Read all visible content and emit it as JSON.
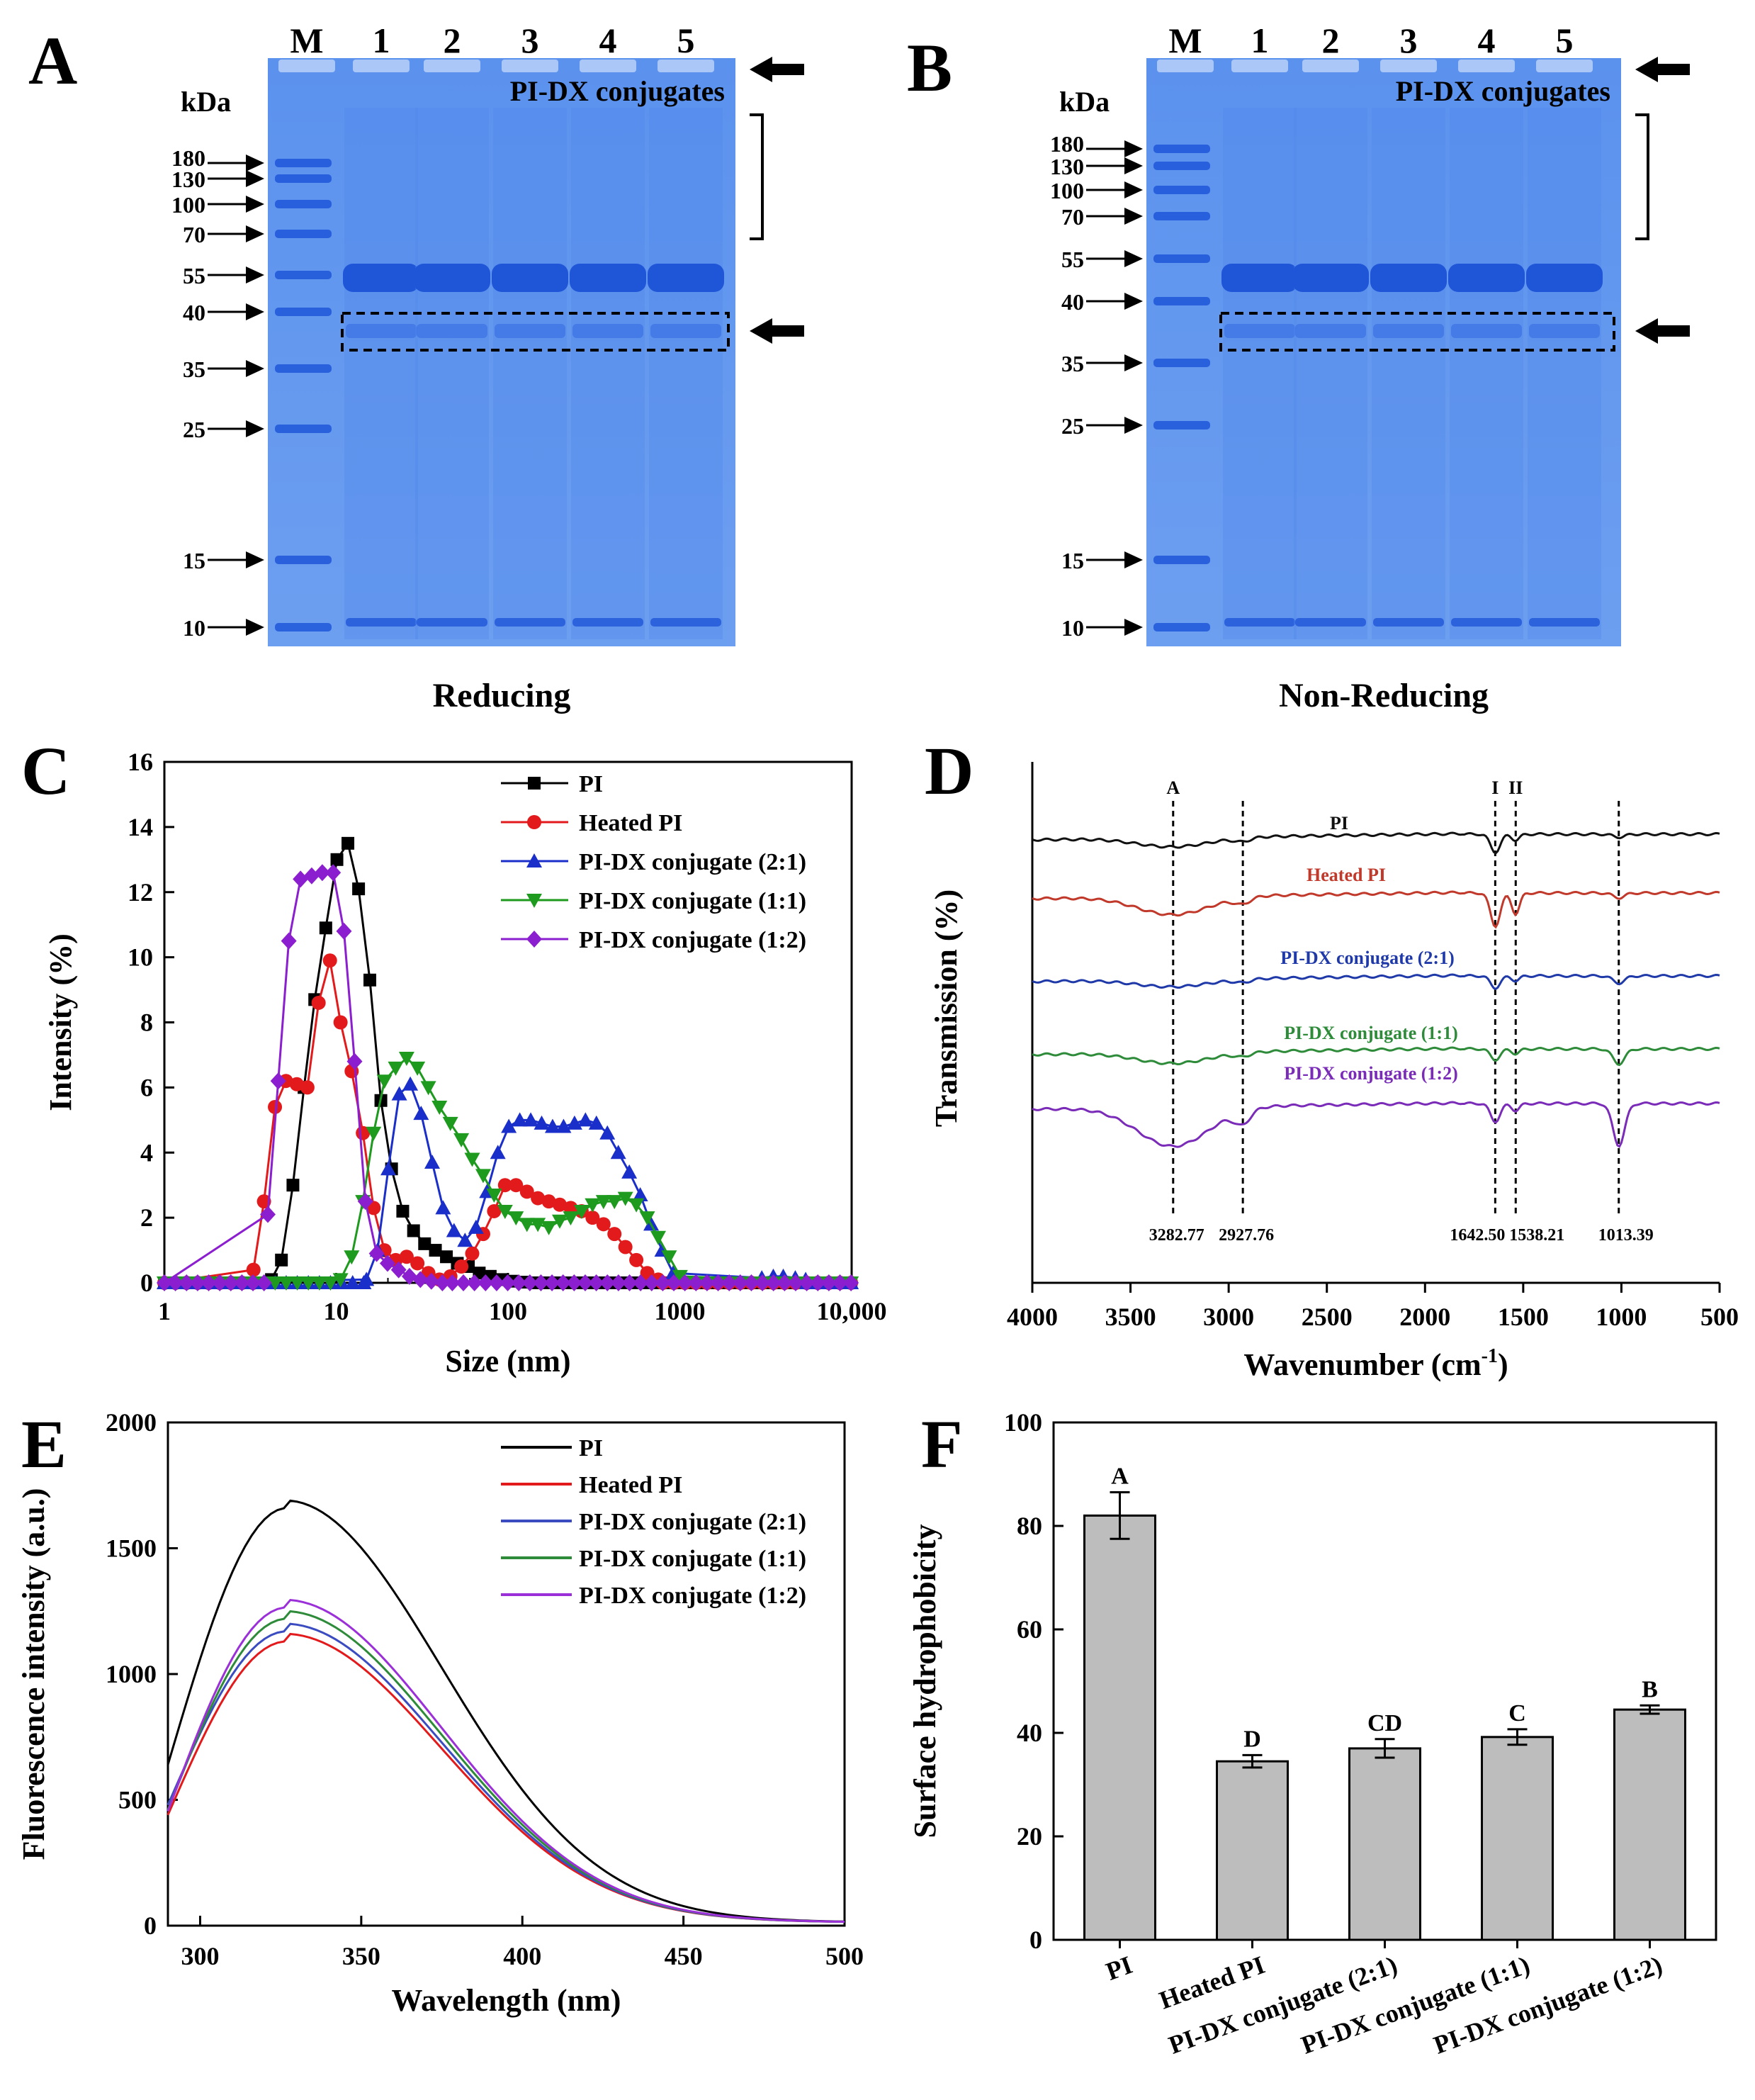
{
  "figure": {
    "panel_labels": [
      "A",
      "B",
      "C",
      "D",
      "E",
      "F"
    ]
  },
  "gels": [
    {
      "id": "A",
      "lanes": [
        "M",
        "1",
        "2",
        "3",
        "4",
        "5"
      ],
      "kda_label": "kDa",
      "markers": [
        "180",
        "130",
        "100",
        "70",
        "55",
        "40",
        "35",
        "25",
        "15",
        "10"
      ],
      "conjugate_label": "PI-DX conjugates",
      "caption": "Reducing",
      "colors": {
        "gel": "#6d9ff0",
        "band": "#1f56d8"
      }
    },
    {
      "id": "B",
      "lanes": [
        "M",
        "1",
        "2",
        "3",
        "4",
        "5"
      ],
      "kda_label": "kDa",
      "markers": [
        "180",
        "130",
        "100",
        "70",
        "55",
        "40",
        "35",
        "25",
        "15",
        "10"
      ],
      "conjugate_label": "PI-DX conjugates",
      "caption": "Non-Reducing",
      "colors": {
        "gel": "#6d9ff0",
        "band": "#1f56d8"
      }
    }
  ],
  "chart_data": [
    {
      "panel": "C",
      "type": "line",
      "xscale": "log",
      "xlabel": "Size (nm)",
      "ylabel": "Intensity (%)",
      "xlim": [
        1,
        10000
      ],
      "ylim": [
        0,
        16
      ],
      "xticks": [
        "1",
        "10",
        "100",
        "1000",
        "10,000"
      ],
      "yticks": [
        "0",
        "2",
        "4",
        "6",
        "8",
        "10",
        "12",
        "14",
        "16"
      ],
      "legend_position": "top-right",
      "series": [
        {
          "name": "PI",
          "color": "#000000",
          "marker": "square",
          "x": [
            4.2,
            4.8,
            5.6,
            6.5,
            7.5,
            8.7,
            10.1,
            11.7,
            13.5,
            15.7,
            18.2,
            21,
            24.4,
            28.2,
            32.7,
            37.8,
            43.8,
            50.7,
            58.8,
            68,
            78.8,
            91.3,
            105.7,
            122.4,
            141.8,
            164.2
          ],
          "y": [
            0.1,
            0.7,
            3.0,
            6.0,
            8.7,
            10.9,
            13.0,
            13.5,
            12.1,
            9.3,
            5.6,
            3.5,
            2.2,
            1.6,
            1.2,
            1.0,
            0.8,
            0.6,
            0.5,
            0.3,
            0.2,
            0.1,
            0.05,
            0.02,
            0,
            0
          ]
        },
        {
          "name": "Heated PI",
          "color": "#e31a1c",
          "marker": "circle",
          "x": [
            3.3,
            3.8,
            4.4,
            5.1,
            5.9,
            6.8,
            7.9,
            9.2,
            10.6,
            12.3,
            14.3,
            16.5,
            19.1,
            22.2,
            25.7,
            29.7,
            34.4,
            39.9,
            46.2,
            53.5,
            61.9,
            71.7,
            83,
            96.1,
            111.3,
            128.9,
            149.2,
            172.8,
            200,
            231.6,
            268.2,
            310.5,
            359.6,
            416.4,
            482.1,
            558.3,
            646.4,
            748.5
          ],
          "y": [
            0.4,
            2.5,
            5.4,
            6.2,
            6.1,
            6.0,
            8.6,
            9.9,
            8.0,
            6.5,
            4.6,
            2.3,
            1.0,
            0.7,
            0.8,
            0.6,
            0.3,
            0.1,
            0.2,
            0.5,
            0.9,
            1.5,
            2.2,
            3.0,
            3.0,
            2.8,
            2.6,
            2.5,
            2.4,
            2.3,
            2.2,
            2.0,
            1.8,
            1.5,
            1.1,
            0.7,
            0.3,
            0.1
          ]
        },
        {
          "name": "PI-DX conjugate (2:1)",
          "color": "#1a2ec9",
          "marker": "triangle-up",
          "x": [
            15,
            17.4,
            20.1,
            23.3,
            27,
            31.2,
            36.2,
            41.9,
            48.5,
            56.2,
            65.1,
            75.4,
            87.3,
            101.1,
            117.1,
            135.6,
            157,
            181.8,
            210.6,
            243.9,
            282.4,
            327,
            378.7,
            438.6,
            507.9,
            588.2,
            681.2,
            788.9,
            913.5,
            3000,
            3500,
            4000,
            4700,
            5400
          ],
          "y": [
            0.1,
            1.0,
            3.5,
            5.8,
            6.1,
            5.2,
            3.7,
            2.3,
            1.6,
            1.3,
            1.7,
            2.8,
            4.0,
            4.8,
            5.0,
            5.0,
            4.9,
            4.8,
            4.8,
            4.9,
            5.0,
            4.9,
            4.6,
            4.0,
            3.4,
            2.7,
            1.8,
            1.0,
            0.3,
            0.15,
            0.2,
            0.2,
            0.15,
            0.1
          ]
        },
        {
          "name": "PI-DX conjugate (1:1)",
          "color": "#1e9a1e",
          "marker": "triangle-down",
          "x": [
            10.6,
            12.3,
            14.3,
            16.5,
            19.1,
            22.2,
            25.7,
            29.7,
            34.4,
            39.9,
            46.2,
            53.5,
            61.9,
            71.7,
            83,
            96.1,
            111.3,
            128.9,
            149.2,
            172.8,
            200,
            231.6,
            268.2,
            310.5,
            359.6,
            416.4,
            482.1,
            558.3,
            646.4,
            748.5,
            866.7,
            1003.6
          ],
          "y": [
            0.1,
            0.8,
            2.5,
            4.6,
            6.2,
            6.6,
            6.9,
            6.6,
            6.0,
            5.4,
            4.9,
            4.4,
            3.8,
            3.3,
            2.7,
            2.2,
            2.0,
            1.8,
            1.8,
            1.7,
            1.9,
            2.0,
            2.2,
            2.4,
            2.5,
            2.5,
            2.6,
            2.4,
            2.0,
            1.4,
            0.8,
            0.2
          ]
        },
        {
          "name": "PI-DX conjugate (1:2)",
          "color": "#8b1ecf",
          "marker": "diamond",
          "x": [
            4.0,
            4.6,
            5.3,
            6.2,
            7.2,
            8.3,
            9.6,
            11.1,
            12.8,
            14.8,
            17.2,
            19.9,
            23.1,
            26.7,
            30.9,
            35.8,
            41.5
          ],
          "y": [
            2.1,
            6.2,
            10.5,
            12.4,
            12.5,
            12.6,
            12.6,
            10.8,
            6.8,
            2.5,
            0.9,
            0.6,
            0.4,
            0.2,
            0.1,
            0.05,
            0
          ]
        }
      ]
    },
    {
      "panel": "D",
      "type": "line",
      "xlabel": "Wavenumber (cm",
      "xlabel_sup": "-1",
      "xlabel_end": ")",
      "ylabel": "Transmission (%)",
      "xlim": [
        4000,
        500
      ],
      "xticks": [
        "4000",
        "3500",
        "3000",
        "2500",
        "2000",
        "1500",
        "1000",
        "500"
      ],
      "peak_marks": [
        {
          "label": "A",
          "value": "3282.77",
          "x": 3282.77
        },
        {
          "label": "",
          "value": "2927.76",
          "x": 2927.76
        },
        {
          "label": "I",
          "value": "1642.50",
          "x": 1642.5
        },
        {
          "label": "II",
          "value": "1538.21",
          "x": 1538.21
        },
        {
          "label": "",
          "value": "1013.39",
          "x": 1013.39
        }
      ],
      "series": [
        {
          "name": "PI",
          "color": "#111111",
          "offset": 0,
          "depth": [
            0.15,
            0.06,
            0.3,
            0.1,
            0.05
          ]
        },
        {
          "name": "Heated PI",
          "color": "#c0392b",
          "offset": 1,
          "depth": [
            0.3,
            0.1,
            0.55,
            0.35,
            0.08
          ]
        },
        {
          "name": "PI-DX conjugate (2:1)",
          "color": "#1f3aa8",
          "offset": 2,
          "depth": [
            0.12,
            0.05,
            0.2,
            0.08,
            0.12
          ]
        },
        {
          "name": "PI-DX conjugate (1:1)",
          "color": "#2e8b3a",
          "offset": 3,
          "depth": [
            0.18,
            0.06,
            0.18,
            0.08,
            0.25
          ]
        },
        {
          "name": "PI-DX conjugate (1:2)",
          "color": "#7a2bb8",
          "offset": 4,
          "depth": [
            0.65,
            0.22,
            0.3,
            0.12,
            0.7
          ]
        }
      ]
    },
    {
      "panel": "E",
      "type": "line",
      "xlabel": "Wavelength (nm)",
      "ylabel": "Fluorescence intensity (a.u.)",
      "xlim": [
        290,
        500
      ],
      "ylim": [
        0,
        2000
      ],
      "xticks": [
        "300",
        "350",
        "400",
        "450",
        "500"
      ],
      "yticks": [
        "0",
        "500",
        "1000",
        "1500",
        "2000"
      ],
      "legend_position": "top-right",
      "series": [
        {
          "name": "PI",
          "color": "#000000",
          "peak": 1660,
          "start": 640
        },
        {
          "name": "Heated PI",
          "color": "#e31a1c",
          "peak": 1130,
          "start": 440
        },
        {
          "name": "PI-DX conjugate (2:1)",
          "color": "#3b4cc0",
          "peak": 1170,
          "start": 480
        },
        {
          "name": "PI-DX conjugate (1:1)",
          "color": "#2e8b3a",
          "peak": 1220,
          "start": 460
        },
        {
          "name": "PI-DX conjugate (1:2)",
          "color": "#9b30d9",
          "peak": 1265,
          "start": 455
        }
      ]
    },
    {
      "panel": "F",
      "type": "bar",
      "ylabel": "Surface hydrophobicity",
      "ylim": [
        0,
        100
      ],
      "yticks": [
        "0",
        "20",
        "40",
        "60",
        "80",
        "100"
      ],
      "categories": [
        "PI",
        "Heated PI",
        "PI-DX conjugate (2:1)",
        "PI-DX conjugate (1:1)",
        "PI-DX conjugate (1:2)"
      ],
      "values": [
        82,
        34.5,
        37,
        39.2,
        44.5
      ],
      "errors": [
        4.5,
        1.2,
        1.8,
        1.5,
        0.8
      ],
      "letters": [
        "A",
        "D",
        "CD",
        "C",
        "B"
      ],
      "bar_color": "#bdbdbd"
    }
  ]
}
